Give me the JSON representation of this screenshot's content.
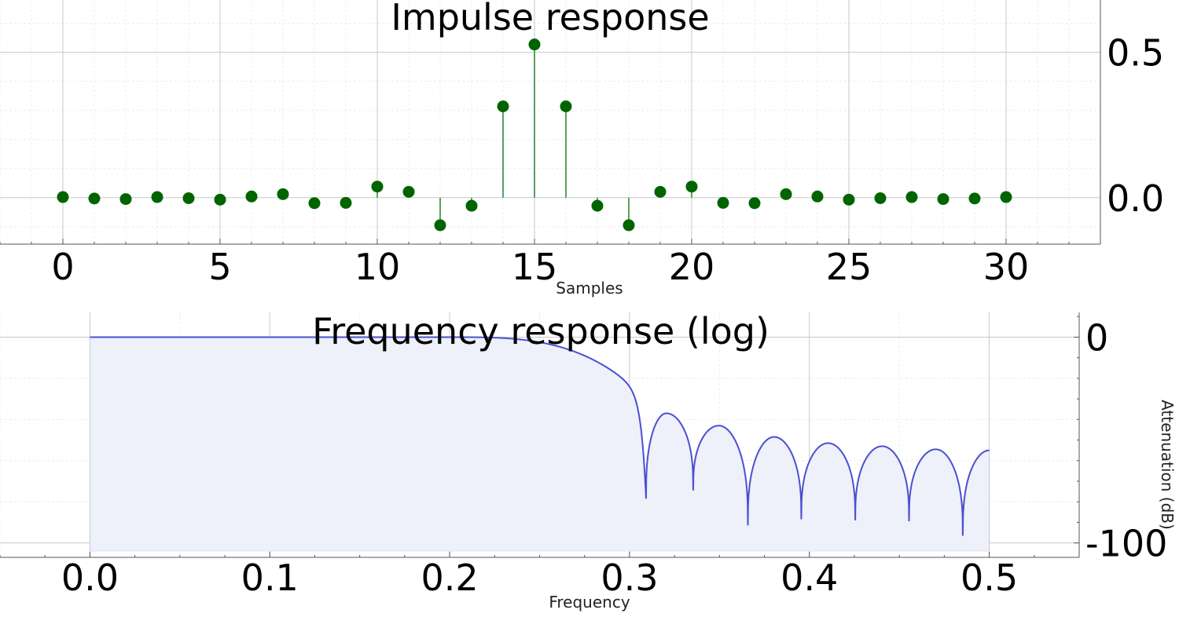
{
  "chart_data": [
    {
      "type": "stem",
      "title": "Impulse response",
      "xlabel": "Samples",
      "ylabel": "",
      "xlim": [
        -2,
        33
      ],
      "ylim": [
        -0.16,
        0.68
      ],
      "x_ticks": [
        0,
        5,
        10,
        15,
        20,
        25,
        30
      ],
      "y_ticks": [
        0.0,
        0.5
      ],
      "y_tick_labels": [
        "0.0",
        "0.5"
      ],
      "x": [
        0,
        1,
        2,
        3,
        4,
        5,
        6,
        7,
        8,
        9,
        10,
        11,
        12,
        13,
        14,
        15,
        16,
        17,
        18,
        19,
        20,
        21,
        22,
        23,
        24,
        25,
        26,
        27,
        28,
        29,
        30
      ],
      "values": [
        0.002,
        -0.003,
        -0.005,
        0.002,
        -0.002,
        -0.007,
        0.004,
        0.012,
        -0.019,
        -0.018,
        0.038,
        0.02,
        -0.095,
        -0.028,
        0.314,
        0.527,
        0.314,
        -0.028,
        -0.095,
        0.02,
        0.038,
        -0.018,
        -0.019,
        0.012,
        0.004,
        -0.007,
        -0.002,
        0.002,
        -0.005,
        -0.003,
        0.002
      ],
      "grid": true,
      "color": "#006400",
      "stem_color": "#5e9e5e"
    },
    {
      "type": "area",
      "title": "Frequency response (log)",
      "xlabel": "Frequency",
      "ylabel": "Attenuation (dB)",
      "xlim": [
        -0.05,
        0.55
      ],
      "ylim": [
        -107,
        12
      ],
      "x_ticks": [
        0.0,
        0.1,
        0.2,
        0.3,
        0.4,
        0.5
      ],
      "x_tick_labels": [
        "0.0",
        "0.1",
        "0.2",
        "0.3",
        "0.4",
        "0.5"
      ],
      "y_ticks": [
        0,
        -100
      ],
      "y_tick_labels": [
        "0",
        "-100"
      ],
      "passband_edge": 0.2,
      "stopband": {
        "nulls": [
          0.3092,
          0.3354,
          0.3658,
          0.3955,
          0.4255,
          0.4554,
          0.4853
        ],
        "null_db": [
          -78.5,
          -74.5,
          -91.5,
          -88.5,
          -89,
          -89.5,
          -96.5
        ],
        "peaks": [
          0.3205,
          0.3496,
          0.3804,
          0.4104,
          0.4404,
          0.4703,
          0.5
        ],
        "peak_db": [
          -37,
          -43,
          -48.5,
          -51.5,
          -53,
          -54.5,
          -55
        ]
      },
      "grid": true,
      "line_color": "#4a50d0",
      "fill_color": "#eef0fa"
    }
  ]
}
